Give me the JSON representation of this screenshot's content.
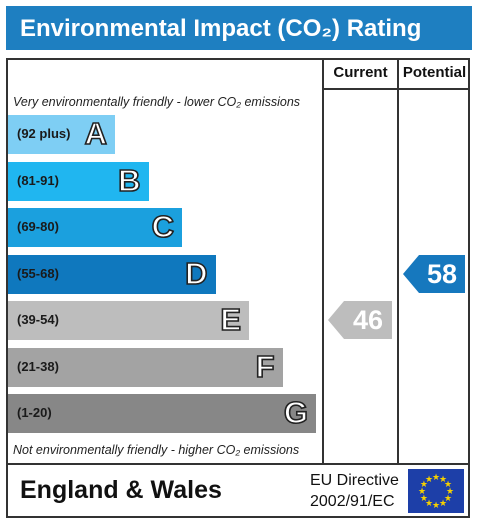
{
  "title": "Environmental Impact (CO₂) Rating",
  "columns": {
    "current": "Current",
    "potential": "Potential"
  },
  "notes": {
    "top": "Very environmentally friendly - lower CO₂ emissions",
    "bottom": "Not environmentally friendly - higher CO₂ emissions"
  },
  "bands": [
    {
      "range": "(92 plus)",
      "letter": "A"
    },
    {
      "range": "(81-91)",
      "letter": "B"
    },
    {
      "range": "(69-80)",
      "letter": "C"
    },
    {
      "range": "(55-68)",
      "letter": "D"
    },
    {
      "range": "(39-54)",
      "letter": "E"
    },
    {
      "range": "(21-38)",
      "letter": "F"
    },
    {
      "range": "(1-20)",
      "letter": "G"
    }
  ],
  "ratings": {
    "current": "46",
    "potential": "58"
  },
  "footer": {
    "region": "England & Wales",
    "directive_line1": "EU Directive",
    "directive_line2": "2002/91/EC"
  },
  "colors": {
    "title_bg": "#1e7fc1",
    "band_colors": [
      "#7ecef4",
      "#20b6f0",
      "#1ba0de",
      "#0f78be",
      "#bdbdbd",
      "#a3a3a3",
      "#878787"
    ],
    "current_arrow": "#bdbdbd",
    "potential_arrow": "#1678be"
  },
  "chart_data": {
    "type": "bar",
    "categories": [
      "A",
      "B",
      "C",
      "D",
      "E",
      "F",
      "G"
    ],
    "category_ranges": [
      "(92 plus)",
      "(81-91)",
      "(69-80)",
      "(55-68)",
      "(39-54)",
      "(21-38)",
      "(1-20)"
    ],
    "current_rating": 46,
    "current_band": "E",
    "potential_rating": 58,
    "potential_band": "D"
  }
}
